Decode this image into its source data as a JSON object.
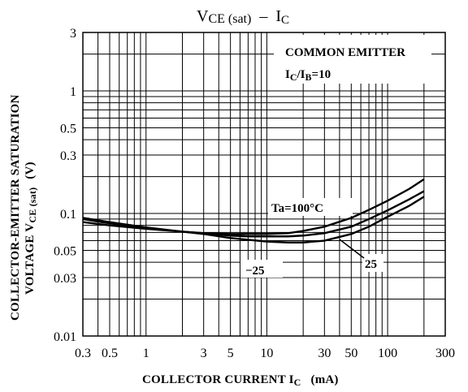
{
  "chart_data": {
    "type": "line",
    "title": "VCE (sat) – IC",
    "title_parts": {
      "main": "V",
      "main_sub": "CE (sat)",
      "dash": "–",
      "tail": "I",
      "tail_sub": "C"
    },
    "xlabel": "COLLECTOR CURRENT  IC  (mA)",
    "xlabel_parts": {
      "text": "COLLECTOR CURRENT  I",
      "sub": "C",
      "unit": "(mA)"
    },
    "ylabel_line1": "COLLECTOR-EMITTER SATURATION",
    "ylabel_line2_text": "VOLTAGE  V",
    "ylabel_line2_sub": "CE (sat)",
    "ylabel_unit": "(V)",
    "x_scale": "log",
    "y_scale": "log",
    "xlim": [
      0.3,
      300
    ],
    "ylim": [
      0.01,
      3
    ],
    "x_ticks": [
      {
        "value": 0.3,
        "label": "0.3"
      },
      {
        "value": 0.5,
        "label": "0.5"
      },
      {
        "value": 1,
        "label": "1"
      },
      {
        "value": 3,
        "label": "3"
      },
      {
        "value": 5,
        "label": "5"
      },
      {
        "value": 10,
        "label": "10"
      },
      {
        "value": 30,
        "label": "30"
      },
      {
        "value": 50,
        "label": "50"
      },
      {
        "value": 100,
        "label": "100"
      },
      {
        "value": 300,
        "label": "300"
      }
    ],
    "y_ticks": [
      {
        "value": 3,
        "label": "3"
      },
      {
        "value": 1,
        "label": "1"
      },
      {
        "value": 0.5,
        "label": "0.5"
      },
      {
        "value": 0.3,
        "label": "0.3"
      },
      {
        "value": 0.1,
        "label": "0.1"
      },
      {
        "value": 0.05,
        "label": "0.05"
      },
      {
        "value": 0.03,
        "label": "0.03"
      },
      {
        "value": 0.01,
        "label": "0.01"
      }
    ],
    "grid": true,
    "conditions": {
      "line1": "COMMON EMITTER",
      "line2_text": "I",
      "line2_sub1": "C",
      "line2_mid": "/I",
      "line2_sub2": "B",
      "line2_tail": "=10"
    },
    "series": [
      {
        "label": "Ta=100°C",
        "x": [
          0.3,
          0.5,
          1,
          2,
          3,
          5,
          7,
          10,
          15,
          20,
          30,
          50,
          70,
          100,
          150,
          200
        ],
        "y": [
          0.085,
          0.08,
          0.075,
          0.071,
          0.069,
          0.068,
          0.068,
          0.068,
          0.069,
          0.072,
          0.078,
          0.092,
          0.107,
          0.127,
          0.158,
          0.19
        ]
      },
      {
        "label": "25",
        "x": [
          0.3,
          0.5,
          1,
          2,
          3,
          5,
          7,
          10,
          15,
          20,
          30,
          50,
          70,
          100,
          150,
          200
        ],
        "y": [
          0.09,
          0.083,
          0.076,
          0.071,
          0.069,
          0.066,
          0.065,
          0.065,
          0.065,
          0.066,
          0.069,
          0.078,
          0.09,
          0.106,
          0.13,
          0.152
        ]
      },
      {
        "label": "−25",
        "x": [
          0.3,
          0.5,
          1,
          2,
          3,
          5,
          7,
          10,
          15,
          20,
          30,
          50,
          70,
          100,
          150,
          200
        ],
        "y": [
          0.092,
          0.085,
          0.077,
          0.071,
          0.068,
          0.063,
          0.061,
          0.059,
          0.058,
          0.058,
          0.06,
          0.068,
          0.078,
          0.094,
          0.115,
          0.137
        ]
      }
    ],
    "annotations": {
      "t100": "Ta=100°C",
      "t25": "25",
      "tm25": "−25"
    }
  }
}
